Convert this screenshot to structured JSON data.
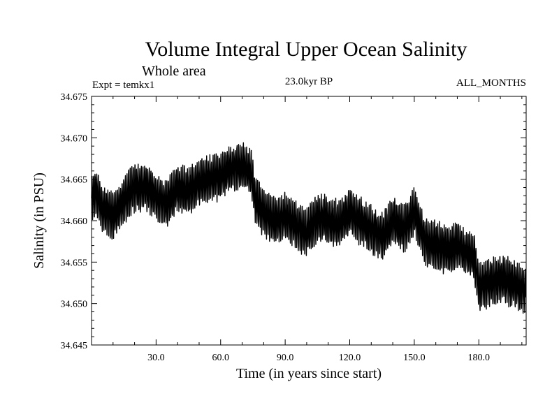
{
  "chart_data": {
    "type": "line",
    "title": "Volume Integral Upper Ocean Salinity",
    "subtitle": "Whole area",
    "experiment_label": "Expt = temkx1",
    "period_label": "23.0kyr BP",
    "months_label": "ALL_MONTHS",
    "xlabel": "Time (in years since start)",
    "ylabel": "Salinity (in PSU)",
    "xlim": [
      0,
      202
    ],
    "ylim": [
      34.645,
      34.675
    ],
    "x_ticks": [
      30,
      60,
      90,
      120,
      150,
      180
    ],
    "x_tick_labels": [
      "30.0",
      "60.0",
      "90.0",
      "120.0",
      "150.0",
      "180.0"
    ],
    "y_ticks": [
      34.645,
      34.65,
      34.655,
      34.66,
      34.665,
      34.67,
      34.675
    ],
    "y_tick_labels": [
      "34.645",
      "34.650",
      "34.655",
      "34.660",
      "34.665",
      "34.670",
      "34.675"
    ],
    "series": [
      {
        "name": "salinity",
        "color": "#000000",
        "trend_x": [
          0,
          2,
          5,
          10,
          15,
          20,
          25,
          30,
          35,
          40,
          45,
          50,
          55,
          60,
          65,
          70,
          74,
          76,
          80,
          85,
          90,
          95,
          100,
          105,
          110,
          115,
          120,
          125,
          130,
          135,
          140,
          145,
          150,
          155,
          160,
          165,
          170,
          175,
          178,
          180,
          185,
          190,
          195,
          202
        ],
        "trend_y": [
          34.6625,
          34.6635,
          34.6615,
          34.6605,
          34.6625,
          34.664,
          34.664,
          34.663,
          34.662,
          34.664,
          34.6635,
          34.6645,
          34.665,
          34.6655,
          34.6665,
          34.6665,
          34.666,
          34.6625,
          34.661,
          34.66,
          34.6605,
          34.6595,
          34.6585,
          34.6605,
          34.66,
          34.6595,
          34.661,
          34.66,
          34.659,
          34.658,
          34.66,
          34.659,
          34.661,
          34.6575,
          34.657,
          34.6565,
          34.657,
          34.656,
          34.6555,
          34.652,
          34.6525,
          34.653,
          34.6525,
          34.6515
        ],
        "oscillation_amplitude": 0.0025
      }
    ]
  }
}
